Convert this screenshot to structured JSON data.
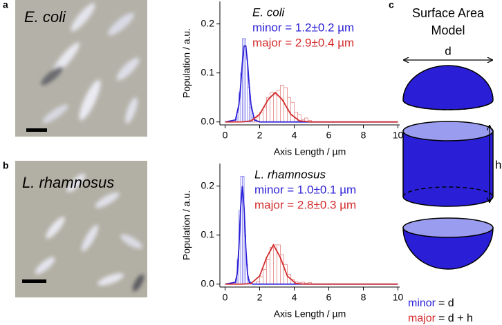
{
  "panel_labels": [
    "a",
    "b",
    "c"
  ],
  "micrographs": [
    {
      "label": "E. coli"
    },
    {
      "label": "L. rhamnosus"
    }
  ],
  "chart_data": [
    {
      "type": "line",
      "title": "E. coli",
      "xlabel": "Axis Length / µm",
      "ylabel": "Population / a.u.",
      "xlim": [
        -0.3,
        10.1
      ],
      "ylim": [
        -0.006,
        0.246
      ],
      "xticks": [
        0,
        2,
        4,
        6,
        8,
        10
      ],
      "yticks": [
        {
          "value": 0,
          "label": "0.0"
        },
        0.1,
        0.2
      ],
      "legend": "upper-right",
      "series": [
        {
          "name": "minor = 1.2±0.2 µm",
          "color": "#2a1fd6",
          "x": [
            0,
            0.6,
            0.8,
            0.9,
            1.0,
            1.1,
            1.2,
            1.3,
            1.4,
            1.5,
            1.7,
            2.0,
            10
          ],
          "values": [
            0,
            0.004,
            0.035,
            0.073,
            0.121,
            0.155,
            0.155,
            0.121,
            0.073,
            0.035,
            0.004,
            0,
            0
          ]
        },
        {
          "name": "major = 2.9±0.4 µm",
          "color": "#d42a2a",
          "x": [
            0,
            1.0,
            1.5,
            2.0,
            2.5,
            2.9,
            3.3,
            3.8,
            4.3,
            5.0,
            6.0,
            10
          ],
          "values": [
            0,
            0.0002,
            0.0023,
            0.0157,
            0.046,
            0.06,
            0.046,
            0.0157,
            0.0023,
            0,
            0,
            0
          ]
        }
      ],
      "histograms": [
        {
          "color": "#8f8cf0",
          "bins": [
            0.6,
            0.7,
            0.8,
            0.9,
            1.0,
            1.1,
            1.2,
            1.3,
            1.4,
            1.5,
            1.6,
            1.7
          ],
          "counts": [
            0.005,
            0.02,
            0.06,
            0.1,
            0.17,
            0.17,
            0.13,
            0.07,
            0.03,
            0.01,
            0.005
          ]
        },
        {
          "color": "#e89a9a",
          "bins": [
            1.6,
            1.8,
            2.0,
            2.2,
            2.4,
            2.6,
            2.8,
            3.0,
            3.2,
            3.4,
            3.6,
            3.8,
            4.0,
            4.2,
            4.4,
            4.6,
            4.8,
            5.0
          ],
          "counts": [
            0.005,
            0.01,
            0.02,
            0.03,
            0.05,
            0.06,
            0.055,
            0.065,
            0.075,
            0.07,
            0.05,
            0.04,
            0.02,
            0.015,
            0.005,
            0.008,
            0.003
          ]
        }
      ]
    },
    {
      "type": "line",
      "title": "L. rhamnosus",
      "xlabel": "Axis Length / µm",
      "ylabel": "Population / a.u.",
      "xlim": [
        -0.3,
        10.1
      ],
      "ylim": [
        -0.006,
        0.246
      ],
      "xticks": [
        0,
        2,
        4,
        6,
        8,
        10
      ],
      "yticks": [
        {
          "value": 0,
          "label": "0.0"
        },
        0.1,
        0.2
      ],
      "legend": "upper-right",
      "series": [
        {
          "name": "minor = 1.0±0.1 µm",
          "color": "#2a1fd6",
          "x": [
            0,
            0.6,
            0.7,
            0.8,
            0.9,
            1.0,
            1.1,
            1.2,
            1.3,
            1.4,
            1.6,
            2.0,
            10
          ],
          "values": [
            0,
            0.0037,
            0.021,
            0.074,
            0.156,
            0.2,
            0.156,
            0.074,
            0.021,
            0.0037,
            0,
            0,
            0
          ]
        },
        {
          "name": "major = 2.8±0.3 µm",
          "color": "#d42a2a",
          "x": [
            0,
            1.0,
            1.5,
            2.0,
            2.4,
            2.8,
            3.2,
            3.6,
            4.1,
            4.6,
            5.5,
            10
          ],
          "values": [
            0,
            0,
            0.0012,
            0.0165,
            0.054,
            0.08,
            0.054,
            0.0165,
            0.0012,
            0,
            0,
            0
          ]
        }
      ],
      "histograms": [
        {
          "color": "#8f8cf0",
          "bins": [
            0.6,
            0.7,
            0.8,
            0.9,
            1.0,
            1.1,
            1.2,
            1.3,
            1.4,
            1.5
          ],
          "counts": [
            0.01,
            0.05,
            0.15,
            0.22,
            0.22,
            0.1,
            0.04,
            0.01,
            0.005
          ]
        },
        {
          "color": "#e89a9a",
          "bins": [
            1.8,
            2.0,
            2.2,
            2.4,
            2.6,
            2.8,
            3.0,
            3.2,
            3.4,
            3.6,
            3.8,
            4.0,
            4.2,
            4.4,
            4.6,
            4.8,
            5.0
          ],
          "counts": [
            0.005,
            0.015,
            0.03,
            0.05,
            0.075,
            0.08,
            0.08,
            0.06,
            0.04,
            0.02,
            0.01,
            0.005,
            0.003,
            0.004,
            0.002,
            0.003
          ]
        }
      ]
    }
  ],
  "model": {
    "title_lines": [
      "Surface Area",
      "Model"
    ],
    "d": "d",
    "h": "h",
    "formulas": [
      {
        "term": "minor",
        "color": "#2a1fd6",
        "expr": "= d"
      },
      {
        "term": "major",
        "color": "#d42a2a",
        "expr": "= d + h"
      }
    ]
  }
}
